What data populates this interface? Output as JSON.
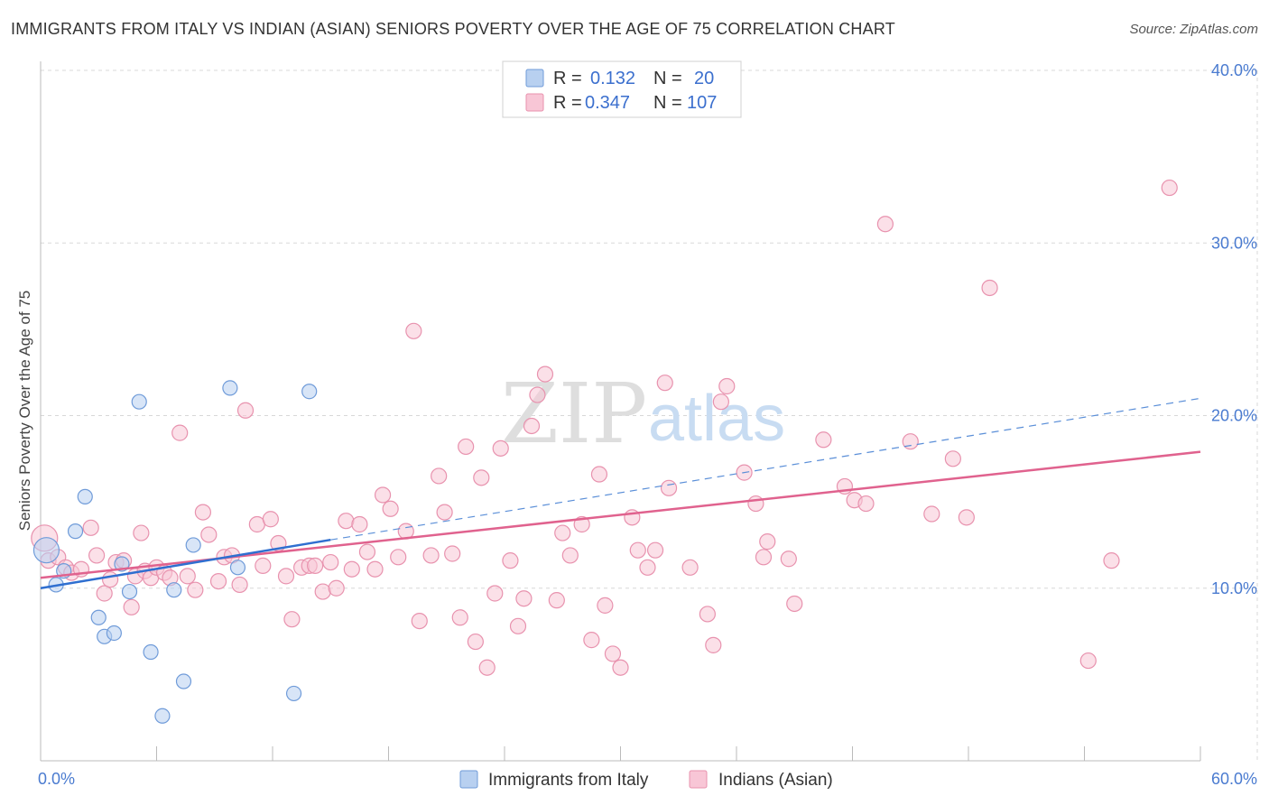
{
  "title": "IMMIGRANTS FROM ITALY VS INDIAN (ASIAN) SENIORS POVERTY OVER THE AGE OF 75 CORRELATION CHART",
  "source": "Source: ZipAtlas.com",
  "colors": {
    "blue_fill": "#b8d0f0",
    "blue_stroke": "#6f9bd9",
    "blue_line": "#2f6fd0",
    "pink_fill": "#f8c6d6",
    "pink_stroke": "#e892ae",
    "pink_line": "#e0628e",
    "grid": "#d8d8d8",
    "accent_text": "#4a7bd0"
  },
  "legend": {
    "r_label": "R =",
    "n_label": "N =",
    "series1": {
      "r": "0.132",
      "n": "20"
    },
    "series2": {
      "r": "0.347",
      "n": "107"
    }
  },
  "watermark": {
    "zip": "ZIP",
    "atlas": "atlas"
  },
  "chart_data": {
    "type": "scatter",
    "title": "IMMIGRANTS FROM ITALY VS INDIAN (ASIAN) SENIORS POVERTY OVER THE AGE OF 75 CORRELATION CHART",
    "xlabel": "",
    "ylabel": "Seniors Poverty Over the Age of 75",
    "xlim": [
      0,
      60
    ],
    "ylim": [
      0,
      40
    ],
    "x_tick_labels": [
      "0.0%",
      "60.0%"
    ],
    "y_ticks": [
      10,
      20,
      30,
      40
    ],
    "y_tick_labels": [
      "10.0%",
      "20.0%",
      "30.0%",
      "40.0%"
    ],
    "series": [
      {
        "name": "Immigrants from Italy",
        "r": 0.132,
        "n": 20,
        "trend": {
          "x0": 0,
          "y0": 10.0,
          "x1": 15.0,
          "y1": 12.8,
          "dashed_to_x": 60,
          "dashed_to_y": 21.0
        },
        "points": [
          [
            0.3,
            12.2
          ],
          [
            0.8,
            10.2
          ],
          [
            1.2,
            11.0
          ],
          [
            1.8,
            13.3
          ],
          [
            2.3,
            15.3
          ],
          [
            3.0,
            8.3
          ],
          [
            3.3,
            7.2
          ],
          [
            3.8,
            7.4
          ],
          [
            4.2,
            11.4
          ],
          [
            4.6,
            9.8
          ],
          [
            5.1,
            20.8
          ],
          [
            5.7,
            6.3
          ],
          [
            6.3,
            2.6
          ],
          [
            6.9,
            9.9
          ],
          [
            7.4,
            4.6
          ],
          [
            7.9,
            12.5
          ],
          [
            9.8,
            21.6
          ],
          [
            10.2,
            11.2
          ],
          [
            13.1,
            3.9
          ],
          [
            13.9,
            21.4
          ]
        ]
      },
      {
        "name": "Indians (Asian)",
        "r": 0.347,
        "n": 107,
        "trend": {
          "x0": 0,
          "y0": 10.6,
          "x1": 60,
          "y1": 17.9
        },
        "points": [
          [
            0.2,
            12.9
          ],
          [
            0.4,
            11.6
          ],
          [
            0.9,
            11.8
          ],
          [
            1.3,
            11.2
          ],
          [
            1.6,
            10.9
          ],
          [
            2.1,
            11.1
          ],
          [
            2.6,
            13.5
          ],
          [
            2.9,
            11.9
          ],
          [
            3.3,
            9.7
          ],
          [
            3.6,
            10.5
          ],
          [
            3.9,
            11.5
          ],
          [
            4.3,
            11.6
          ],
          [
            4.7,
            8.9
          ],
          [
            4.9,
            10.7
          ],
          [
            5.2,
            13.2
          ],
          [
            5.4,
            11.0
          ],
          [
            5.7,
            10.6
          ],
          [
            6.0,
            11.2
          ],
          [
            6.4,
            10.9
          ],
          [
            6.7,
            10.6
          ],
          [
            7.2,
            19.0
          ],
          [
            7.6,
            10.7
          ],
          [
            8.0,
            9.9
          ],
          [
            8.4,
            14.4
          ],
          [
            8.7,
            13.1
          ],
          [
            9.2,
            10.4
          ],
          [
            9.5,
            11.8
          ],
          [
            9.9,
            11.9
          ],
          [
            10.3,
            10.2
          ],
          [
            10.6,
            20.3
          ],
          [
            11.2,
            13.7
          ],
          [
            11.5,
            11.3
          ],
          [
            11.9,
            14.0
          ],
          [
            12.3,
            12.6
          ],
          [
            12.7,
            10.7
          ],
          [
            13.0,
            8.2
          ],
          [
            13.5,
            11.2
          ],
          [
            13.9,
            11.3
          ],
          [
            14.2,
            11.3
          ],
          [
            14.6,
            9.8
          ],
          [
            15.0,
            11.5
          ],
          [
            15.3,
            10.0
          ],
          [
            15.8,
            13.9
          ],
          [
            16.1,
            11.1
          ],
          [
            16.5,
            13.7
          ],
          [
            16.9,
            12.1
          ],
          [
            17.3,
            11.1
          ],
          [
            17.7,
            15.4
          ],
          [
            18.1,
            14.6
          ],
          [
            18.5,
            11.8
          ],
          [
            18.9,
            13.3
          ],
          [
            19.3,
            24.9
          ],
          [
            19.6,
            8.1
          ],
          [
            20.2,
            11.9
          ],
          [
            20.6,
            16.5
          ],
          [
            20.9,
            14.4
          ],
          [
            21.3,
            12.0
          ],
          [
            21.7,
            8.3
          ],
          [
            22.0,
            18.2
          ],
          [
            22.5,
            6.9
          ],
          [
            22.8,
            16.4
          ],
          [
            23.1,
            5.4
          ],
          [
            23.5,
            9.7
          ],
          [
            23.8,
            18.1
          ],
          [
            24.3,
            11.6
          ],
          [
            24.7,
            7.8
          ],
          [
            25.0,
            9.4
          ],
          [
            25.4,
            19.4
          ],
          [
            25.7,
            21.2
          ],
          [
            26.1,
            22.4
          ],
          [
            26.7,
            9.3
          ],
          [
            27.0,
            13.2
          ],
          [
            27.4,
            11.9
          ],
          [
            28.0,
            13.7
          ],
          [
            28.5,
            7.0
          ],
          [
            28.9,
            16.6
          ],
          [
            29.2,
            9.0
          ],
          [
            29.6,
            6.2
          ],
          [
            30.0,
            5.4
          ],
          [
            30.6,
            14.1
          ],
          [
            30.9,
            12.2
          ],
          [
            31.4,
            11.2
          ],
          [
            31.8,
            12.2
          ],
          [
            32.3,
            21.9
          ],
          [
            32.5,
            15.8
          ],
          [
            33.6,
            11.2
          ],
          [
            34.5,
            8.5
          ],
          [
            34.8,
            6.7
          ],
          [
            35.2,
            20.8
          ],
          [
            35.5,
            21.7
          ],
          [
            36.4,
            16.7
          ],
          [
            37.0,
            14.9
          ],
          [
            37.4,
            11.8
          ],
          [
            37.6,
            12.7
          ],
          [
            38.7,
            11.7
          ],
          [
            39.0,
            9.1
          ],
          [
            40.5,
            18.6
          ],
          [
            41.6,
            15.9
          ],
          [
            42.1,
            15.1
          ],
          [
            42.7,
            14.9
          ],
          [
            43.7,
            31.1
          ],
          [
            45.0,
            18.5
          ],
          [
            46.1,
            14.3
          ],
          [
            47.2,
            17.5
          ],
          [
            47.9,
            14.1
          ],
          [
            49.1,
            27.4
          ],
          [
            54.2,
            5.8
          ],
          [
            55.4,
            11.6
          ],
          [
            58.4,
            33.2
          ]
        ]
      }
    ],
    "legend_position": "top-center"
  }
}
